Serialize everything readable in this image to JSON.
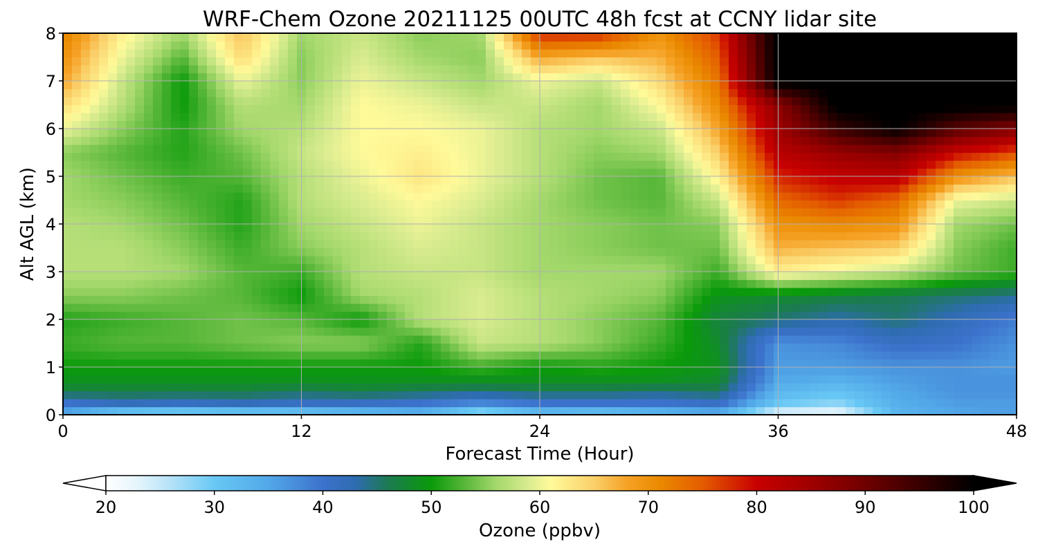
{
  "chart_data": {
    "type": "heatmap",
    "title": "WRF-Chem Ozone  20211125 00UTC 48h fcst at CCNY lidar site",
    "xlabel": "Forecast Time (Hour)",
    "ylabel": "Alt AGL (km)",
    "xlim": [
      0,
      48
    ],
    "ylim": [
      0,
      8
    ],
    "x_ticks": [
      "0",
      "12",
      "24",
      "36",
      "48"
    ],
    "y_ticks": [
      "0",
      "1",
      "2",
      "3",
      "4",
      "5",
      "6",
      "7",
      "8"
    ],
    "grid": true,
    "x": [
      0,
      3,
      6,
      9,
      12,
      15,
      18,
      21,
      24,
      27,
      30,
      33,
      36,
      39,
      42,
      45,
      48
    ],
    "y": [
      0,
      0.25,
      0.5,
      0.75,
      1,
      1.5,
      2,
      2.5,
      3,
      3.5,
      4,
      4.5,
      5,
      5.5,
      6,
      6.5,
      7,
      7.5,
      8
    ],
    "values": [
      [
        34,
        27,
        26,
        27,
        28,
        30,
        32,
        25,
        30,
        29,
        31,
        33,
        22,
        21,
        33,
        35,
        36
      ],
      [
        40,
        42,
        41,
        42,
        41,
        41,
        40,
        38,
        40,
        40,
        40,
        41,
        30,
        28,
        34,
        36,
        36
      ],
      [
        47,
        47,
        47,
        47,
        46,
        47,
        46,
        45,
        46,
        46,
        45,
        46,
        33,
        31,
        35,
        37,
        37
      ],
      [
        49,
        49,
        49,
        49,
        49,
        49,
        49,
        49,
        49,
        49,
        49,
        48,
        35,
        34,
        36,
        37,
        37
      ],
      [
        50,
        50,
        50,
        50,
        50,
        50,
        50,
        52,
        50,
        51,
        50,
        49,
        36,
        36,
        37,
        37,
        36
      ],
      [
        52,
        53,
        53,
        54,
        55,
        55,
        51,
        58,
        57,
        55,
        52,
        48,
        37,
        38,
        41,
        40,
        37
      ],
      [
        51,
        52,
        53,
        54,
        53,
        50,
        57,
        59,
        57,
        55,
        53,
        47,
        45,
        43,
        45,
        42,
        39
      ],
      [
        55,
        55,
        54,
        53,
        50,
        56,
        57,
        59,
        57,
        56,
        55,
        49,
        48,
        47,
        46,
        45,
        44
      ],
      [
        57,
        57,
        56,
        53,
        52,
        57,
        58,
        58,
        56,
        56,
        56,
        52,
        62,
        60,
        58,
        54,
        52
      ],
      [
        57,
        57,
        55,
        52,
        55,
        57,
        59,
        58,
        56,
        55,
        54,
        54,
        67,
        66,
        65,
        55,
        52
      ],
      [
        57,
        56,
        54,
        51,
        56,
        58,
        60,
        58,
        56,
        55,
        54,
        55,
        70,
        71,
        70,
        56,
        54
      ],
      [
        56,
        55,
        53,
        51,
        57,
        59,
        61,
        59,
        56,
        54,
        53,
        58,
        74,
        77,
        74,
        60,
        58
      ],
      [
        56,
        54,
        52,
        53,
        57,
        60,
        63,
        60,
        57,
        54,
        53,
        62,
        78,
        81,
        82,
        70,
        66
      ],
      [
        55,
        53,
        51,
        54,
        58,
        61,
        62,
        60,
        57,
        55,
        56,
        65,
        82,
        86,
        88,
        80,
        76
      ],
      [
        60,
        55,
        51,
        56,
        57,
        61,
        61,
        60,
        57,
        56,
        58,
        68,
        85,
        95,
        100,
        92,
        88
      ],
      [
        64,
        57,
        50,
        57,
        56,
        61,
        60,
        58,
        58,
        56,
        61,
        71,
        87,
        101,
        101,
        101,
        101
      ],
      [
        68,
        58,
        50,
        60,
        55,
        60,
        58,
        56,
        60,
        58,
        64,
        73,
        101,
        101,
        101,
        101,
        101
      ],
      [
        70,
        60,
        53,
        64,
        55,
        59,
        56,
        55,
        68,
        66,
        67,
        75,
        101,
        101,
        101,
        101,
        101
      ],
      [
        72,
        62,
        56,
        66,
        56,
        58,
        55,
        56,
        78,
        78,
        70,
        77,
        101,
        101,
        101,
        101,
        101
      ]
    ],
    "colorbar": {
      "label": "Ozone  (ppbv)",
      "min": 20,
      "max": 100,
      "extend": "both",
      "ticks": [
        "20",
        "30",
        "40",
        "50",
        "60",
        "70",
        "80",
        "90",
        "100"
      ],
      "colors": [
        {
          "v": 20,
          "c": "#ffffff"
        },
        {
          "v": 23,
          "c": "#e4f4fc"
        },
        {
          "v": 26,
          "c": "#b4e2f8"
        },
        {
          "v": 30,
          "c": "#68c8f4"
        },
        {
          "v": 35,
          "c": "#52a8e8"
        },
        {
          "v": 40,
          "c": "#3c72cc"
        },
        {
          "v": 43,
          "c": "#2e6cb0"
        },
        {
          "v": 46,
          "c": "#1c7a52"
        },
        {
          "v": 50,
          "c": "#0a9a0a"
        },
        {
          "v": 53,
          "c": "#56b638"
        },
        {
          "v": 56,
          "c": "#a4d86c"
        },
        {
          "v": 59,
          "c": "#daec90"
        },
        {
          "v": 61,
          "c": "#fffa9a"
        },
        {
          "v": 65,
          "c": "#fad06a"
        },
        {
          "v": 68,
          "c": "#f6a226"
        },
        {
          "v": 71,
          "c": "#ea8a00"
        },
        {
          "v": 75,
          "c": "#e45c00"
        },
        {
          "v": 80,
          "c": "#c80000"
        },
        {
          "v": 85,
          "c": "#a00000"
        },
        {
          "v": 90,
          "c": "#700000"
        },
        {
          "v": 95,
          "c": "#380000"
        },
        {
          "v": 100,
          "c": "#000000"
        }
      ]
    }
  }
}
